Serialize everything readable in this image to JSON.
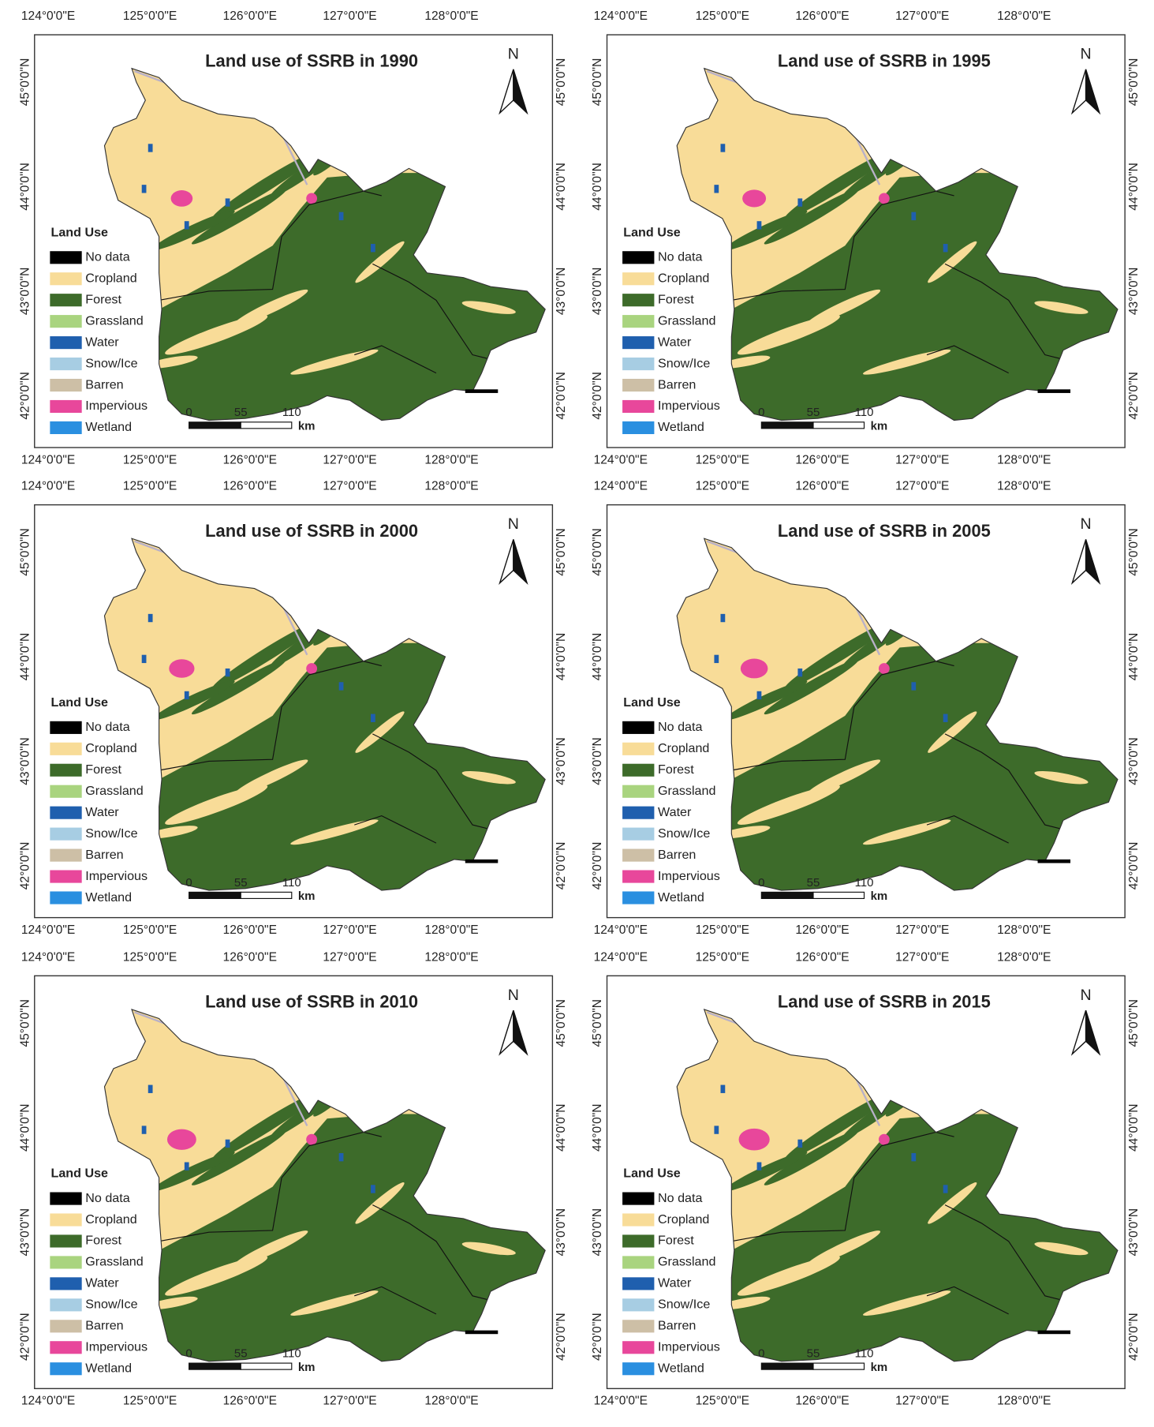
{
  "panels": [
    {
      "title": "Land use of SSRB in 1990"
    },
    {
      "title": "Land use of SSRB in 1995"
    },
    {
      "title": "Land use of SSRB in 2000"
    },
    {
      "title": "Land use of SSRB in 2005"
    },
    {
      "title": "Land use of SSRB in 2010"
    },
    {
      "title": "Land use of SSRB in 2015"
    }
  ],
  "lon_labels": [
    "124°0'0\"E",
    "125°0'0\"E",
    "126°0'0\"E",
    "127°0'0\"E",
    "128°0'0\"E"
  ],
  "lat_labels": [
    "45°0'0\"N",
    "44°0'0\"N",
    "43°0'0\"N",
    "42°0'0\"N"
  ],
  "north": "N",
  "legend": {
    "title": "Land Use",
    "items": [
      {
        "label": "No data",
        "color": "#000000"
      },
      {
        "label": "Cropland",
        "color": "#f8dc98"
      },
      {
        "label": "Forest",
        "color": "#3d6b2a"
      },
      {
        "label": "Grassland",
        "color": "#a9d47f"
      },
      {
        "label": "Water",
        "color": "#1f5fae"
      },
      {
        "label": "Snow/Ice",
        "color": "#a7cde3"
      },
      {
        "label": "Barren",
        "color": "#cdbfa6"
      },
      {
        "label": "Impervious",
        "color": "#e8479b"
      },
      {
        "label": "Wetland",
        "color": "#2a8fe0"
      }
    ]
  },
  "scale": {
    "labels": [
      "0",
      "55",
      "110"
    ],
    "unit": "km"
  }
}
